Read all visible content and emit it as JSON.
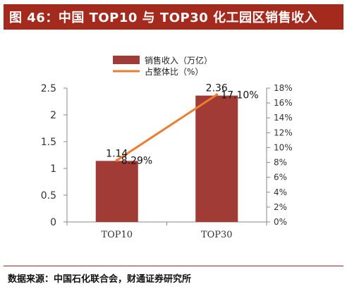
{
  "header": {
    "title": "图 46：中国 TOP10 与 TOP30 化工园区销售收入"
  },
  "footer": {
    "source": "数据来源：中国石化联合会，财通证券研究所"
  },
  "colors": {
    "header_bg": "#a52a1e",
    "bar": "#a03b36",
    "line": "#ed7d31"
  },
  "chart_data": {
    "type": "bar",
    "categories": [
      "TOP10",
      "TOP30"
    ],
    "series": [
      {
        "name": "销售收入（万亿）",
        "type": "bar",
        "axis": "left",
        "values": [
          1.14,
          2.36
        ],
        "value_labels": [
          "1.14",
          "2.36"
        ]
      },
      {
        "name": "占整体比（%）",
        "type": "line",
        "axis": "right",
        "values": [
          8.29,
          17.1
        ],
        "value_labels": [
          "8.29%",
          "17.10%"
        ]
      }
    ],
    "y_left": {
      "ylim": [
        0,
        2.5
      ],
      "ticks": [
        "0",
        "0.5",
        "1",
        "1.5",
        "2",
        "2.5"
      ],
      "tick_values": [
        0,
        0.5,
        1,
        1.5,
        2,
        2.5
      ]
    },
    "y_right": {
      "ylim": [
        0,
        18
      ],
      "ticks": [
        "0%",
        "2%",
        "4%",
        "6%",
        "8%",
        "10%",
        "12%",
        "14%",
        "16%",
        "18%"
      ],
      "tick_values": [
        0,
        2,
        4,
        6,
        8,
        10,
        12,
        14,
        16,
        18
      ]
    },
    "legend_position": "top-center",
    "grid": false
  }
}
